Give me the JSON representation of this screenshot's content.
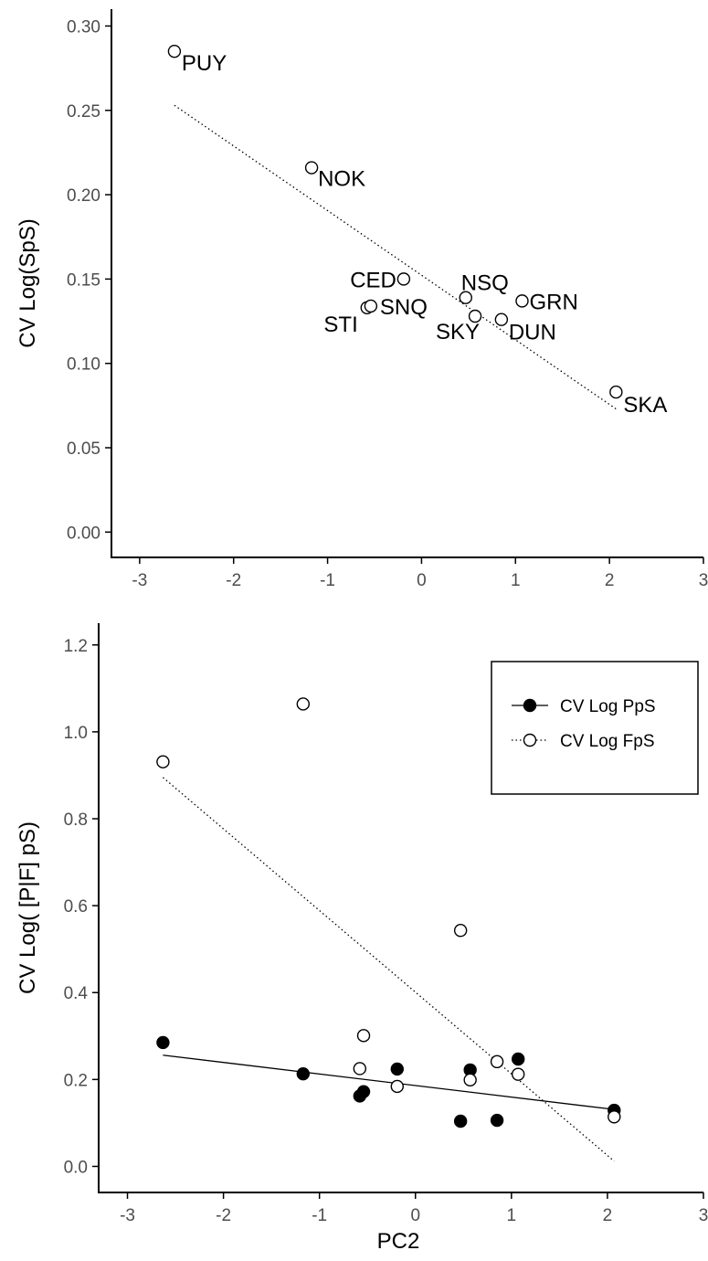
{
  "colors": {
    "axis": "#000000",
    "tick_label": "#4d4d4d",
    "point_stroke": "#000000",
    "filled_point": "#000000",
    "open_point": "#ffffff"
  },
  "chart_data": [
    {
      "type": "scatter",
      "title": "",
      "xlabel": "",
      "ylabel": "CV Log(SpS)",
      "xlim": [
        -3.3,
        3.0
      ],
      "ylim": [
        -0.015,
        0.31
      ],
      "xticks": [
        "-3",
        "-2",
        "-1",
        "0",
        "1",
        "2",
        "3"
      ],
      "yticks": [
        "0.00",
        "0.05",
        "0.10",
        "0.15",
        "0.20",
        "0.25",
        "0.30"
      ],
      "grid": false,
      "series": [
        {
          "marker": "open-circle",
          "points": [
            {
              "label": "PUY",
              "x": -2.63,
              "y": 0.285
            },
            {
              "label": "NOK",
              "x": -1.17,
              "y": 0.216
            },
            {
              "label": "CED",
              "x": -0.19,
              "y": 0.15
            },
            {
              "label": "NSQ",
              "x": 0.47,
              "y": 0.139
            },
            {
              "label": "GRN",
              "x": 1.07,
              "y": 0.137
            },
            {
              "label": "STI",
              "x": -0.58,
              "y": 0.133
            },
            {
              "label": "SNQ",
              "x": -0.54,
              "y": 0.134
            },
            {
              "label": "SKY",
              "x": 0.57,
              "y": 0.128
            },
            {
              "label": "DUN",
              "x": 0.85,
              "y": 0.126
            },
            {
              "label": "SKA",
              "x": 2.07,
              "y": 0.083
            }
          ],
          "trend": {
            "style": "dotted",
            "x": [
              -2.63,
              2.07
            ],
            "y": [
              0.253,
              0.073
            ]
          }
        }
      ]
    },
    {
      "type": "scatter",
      "title": "",
      "xlabel": "PC2",
      "ylabel": "CV Log( [P|F] pS)",
      "xlim": [
        -3.3,
        3.0
      ],
      "ylim": [
        -0.06,
        1.25
      ],
      "xticks": [
        "-3",
        "-2",
        "-1",
        "0",
        "1",
        "2",
        "3"
      ],
      "yticks": [
        "0.0",
        "0.2",
        "0.4",
        "0.6",
        "0.8",
        "1.0",
        "1.2"
      ],
      "grid": false,
      "legend": {
        "position": "top-right"
      },
      "series": [
        {
          "name": "CV Log PpS",
          "marker": "filled-circle",
          "line": "solid",
          "x": [
            -2.63,
            -1.17,
            -0.58,
            -0.54,
            -0.19,
            0.47,
            0.57,
            0.85,
            1.07,
            2.07
          ],
          "y": [
            0.285,
            0.213,
            0.162,
            0.172,
            0.224,
            0.104,
            0.222,
            0.106,
            0.247,
            0.129
          ],
          "trend": {
            "x": [
              -2.63,
              2.07
            ],
            "y": [
              0.256,
              0.131
            ]
          }
        },
        {
          "name": "CV Log FpS",
          "marker": "open-circle",
          "line": "dotted",
          "x": [
            -2.63,
            -1.17,
            -0.58,
            -0.54,
            -0.19,
            0.47,
            0.57,
            0.85,
            1.07,
            2.07
          ],
          "y": [
            0.931,
            1.064,
            0.225,
            0.301,
            0.184,
            0.543,
            0.199,
            0.241,
            0.212,
            0.114
          ],
          "trend": {
            "x": [
              -2.63,
              2.07
            ],
            "y": [
              0.895,
              0.012
            ]
          }
        }
      ]
    }
  ]
}
